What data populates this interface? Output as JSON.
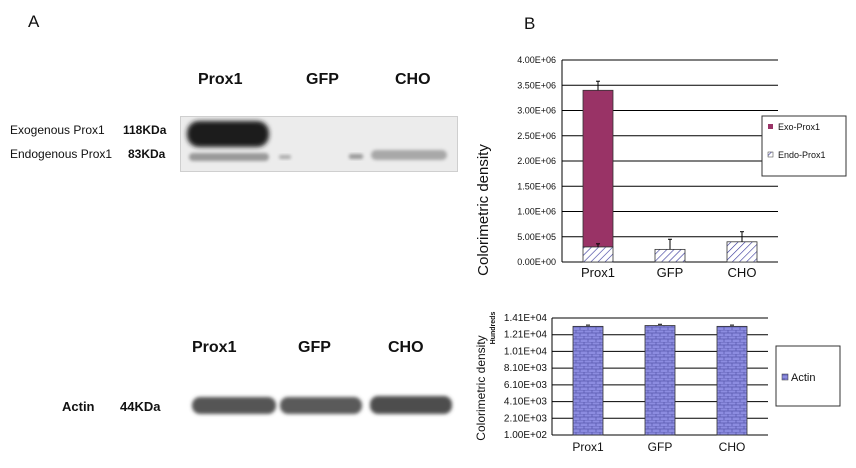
{
  "panels": {
    "a": "A",
    "b": "B"
  },
  "blot_top": {
    "lanes": [
      "Prox1",
      "GFP",
      "CHO"
    ],
    "labels": [
      {
        "name": "Exogenous Prox1",
        "kda": "118KDa"
      },
      {
        "name": "Endogenous Prox1",
        "kda": "83KDa"
      }
    ]
  },
  "blot_bottom": {
    "lanes": [
      "Prox1",
      "GFP",
      "CHO"
    ],
    "label": {
      "name": "Actin",
      "kda": "44KDa"
    }
  },
  "chart_data": [
    {
      "type": "bar",
      "stacked": true,
      "ylabel": "Colorimetric density",
      "categories": [
        "Prox1",
        "GFP",
        "CHO"
      ],
      "ylim": [
        0,
        4000000
      ],
      "yticks": [
        "0.00E+00",
        "5.00E+05",
        "1.00E+06",
        "1.50E+06",
        "2.00E+06",
        "2.50E+06",
        "3.00E+06",
        "3.50E+06",
        "4.00E+06"
      ],
      "series": [
        {
          "name": "Endo-Prox1",
          "values": [
            300000,
            250000,
            400000
          ],
          "errors": [
            60000,
            200000,
            200000
          ],
          "color": "#ffffff",
          "pattern": "diagonal-hatch"
        },
        {
          "name": "Exo-Prox1",
          "values": [
            3100000,
            0,
            0
          ],
          "color": "#993366"
        }
      ],
      "total_errors": [
        180000,
        0,
        0
      ],
      "legend_placement": "right",
      "grid": true
    },
    {
      "type": "bar",
      "ylabel": "Colorimetric density",
      "ylabel_unit": "Hundreds",
      "categories": [
        "Prox1",
        "GFP",
        "CHO"
      ],
      "ylim": [
        100,
        14100
      ],
      "yticks": [
        "1.00E+02",
        "2.10E+03",
        "4.10E+03",
        "6.10E+03",
        "8.10E+03",
        "1.01E+04",
        "1.21E+04",
        "1.41E+04"
      ],
      "series": [
        {
          "name": "Actin",
          "values": [
            13100,
            13200,
            13100
          ],
          "errors": [
            150,
            150,
            150
          ],
          "color": "#8888dd",
          "pattern": "brick"
        }
      ],
      "legend_placement": "right",
      "grid": true
    }
  ]
}
